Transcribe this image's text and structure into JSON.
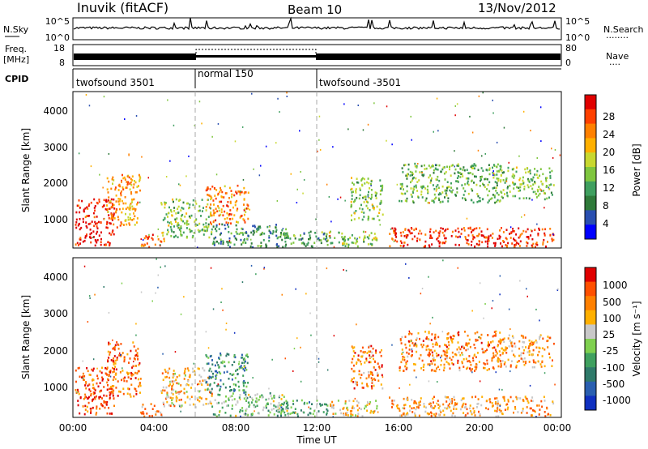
{
  "header": {
    "station": "Inuvik (fitACF)",
    "beam": "Beam 10",
    "date": "13/Nov/2012"
  },
  "noise_panel": {
    "left_label": "N.Sky",
    "left_ticks": [
      "10^5",
      "10^0"
    ],
    "right_ticks": [
      "10^5",
      "10^0"
    ],
    "right_label": "N.Search"
  },
  "freq_panel": {
    "left_label_1": "Freq.",
    "left_label_2": "[MHz]",
    "left_ticks": [
      "18",
      "8"
    ],
    "right_ticks": [
      "80",
      "0"
    ],
    "right_label": "Nave"
  },
  "cpid_panel": {
    "label": "CPID",
    "segments": [
      {
        "name": "twofsound 3501",
        "start_hour": 0,
        "end_hour": 6
      },
      {
        "name": "normal 150",
        "start_hour": 6,
        "end_hour": 12
      },
      {
        "name": "twofsound -3501",
        "start_hour": 12,
        "end_hour": 24
      }
    ]
  },
  "colors": {
    "power_scale": [
      "#0000ff",
      "#2a4fb0",
      "#2f7a3a",
      "#3f9f5f",
      "#7fc63f",
      "#c8d830",
      "#ffb000",
      "#ff8000",
      "#ff4000",
      "#e00000"
    ],
    "velocity_scale": [
      "#e00000",
      "#ff5000",
      "#ff8000",
      "#ffb000",
      "#c8c8c8",
      "#7fd04f",
      "#3fa05f",
      "#2f7a6a",
      "#2a5fb0",
      "#1030c0"
    ]
  },
  "chart_data": [
    {
      "type": "heatmap",
      "title": "Power",
      "xlabel": "Time UT",
      "ylabel": "Slant Range [km]",
      "xlim": [
        0,
        24
      ],
      "ylim": [
        200,
        4600
      ],
      "x_ticks": [
        "00:00",
        "04:00",
        "08:00",
        "12:00",
        "16:00",
        "20:00",
        "00:00"
      ],
      "y_ticks": [
        "1000",
        "2000",
        "3000",
        "4000"
      ],
      "colorbar": {
        "label": "Power [dB]",
        "range": [
          0,
          32
        ],
        "ticks": [
          "4",
          "8",
          "12",
          "16",
          "20",
          "24",
          "28"
        ]
      },
      "regions": [
        {
          "t": [
            0.1,
            2.0
          ],
          "r": [
            300,
            1600
          ],
          "level": 0.95
        },
        {
          "t": [
            1.6,
            3.3
          ],
          "r": [
            800,
            2300
          ],
          "level": 0.7
        },
        {
          "t": [
            3.3,
            4.5
          ],
          "r": [
            250,
            600
          ],
          "level": 0.8
        },
        {
          "t": [
            4.3,
            6.8
          ],
          "r": [
            500,
            1600
          ],
          "level": 0.45
        },
        {
          "t": [
            6.5,
            8.6
          ],
          "r": [
            900,
            2000
          ],
          "level": 0.75
        },
        {
          "t": [
            6.8,
            10.5
          ],
          "r": [
            250,
            900
          ],
          "level": 0.3
        },
        {
          "t": [
            10.0,
            12.5
          ],
          "r": [
            250,
            700
          ],
          "level": 0.35
        },
        {
          "t": [
            12.5,
            15.0
          ],
          "r": [
            250,
            700
          ],
          "level": 0.45
        },
        {
          "t": [
            13.6,
            15.2
          ],
          "r": [
            1000,
            2200
          ],
          "level": 0.45
        },
        {
          "t": [
            15.5,
            23.6
          ],
          "r": [
            250,
            800
          ],
          "level": 0.9
        },
        {
          "t": [
            16.0,
            21.0
          ],
          "r": [
            1500,
            2600
          ],
          "level": 0.4
        },
        {
          "t": [
            21.0,
            23.6
          ],
          "r": [
            1600,
            2500
          ],
          "level": 0.45
        }
      ]
    },
    {
      "type": "heatmap",
      "title": "Velocity",
      "xlabel": "Time UT",
      "ylabel": "Slant Range [km]",
      "xlim": [
        0,
        24
      ],
      "ylim": [
        200,
        4600
      ],
      "x_ticks": [
        "00:00",
        "04:00",
        "08:00",
        "12:00",
        "16:00",
        "20:00",
        "00:00"
      ],
      "y_ticks": [
        "1000",
        "2000",
        "3000",
        "4000"
      ],
      "colorbar": {
        "label": "Velocity [m s⁻¹]",
        "ticks": [
          "1000",
          "500",
          "100",
          "25",
          "-25",
          "-100",
          "-500",
          "-1000"
        ]
      },
      "regions": [
        {
          "t": [
            0.1,
            2.0
          ],
          "r": [
            300,
            1600
          ],
          "level": 0.15
        },
        {
          "t": [
            1.6,
            3.3
          ],
          "r": [
            800,
            2300
          ],
          "level": 0.2
        },
        {
          "t": [
            3.3,
            4.5
          ],
          "r": [
            250,
            600
          ],
          "level": 0.3
        },
        {
          "t": [
            4.3,
            6.8
          ],
          "r": [
            500,
            1600
          ],
          "level": 0.35
        },
        {
          "t": [
            6.5,
            8.6
          ],
          "r": [
            900,
            2000
          ],
          "level": 0.7
        },
        {
          "t": [
            6.8,
            10.5
          ],
          "r": [
            250,
            900
          ],
          "level": 0.55
        },
        {
          "t": [
            10.0,
            12.5
          ],
          "r": [
            250,
            700
          ],
          "level": 0.65
        },
        {
          "t": [
            12.5,
            15.0
          ],
          "r": [
            250,
            700
          ],
          "level": 0.4
        },
        {
          "t": [
            13.6,
            15.2
          ],
          "r": [
            1000,
            2200
          ],
          "level": 0.25
        },
        {
          "t": [
            15.5,
            23.6
          ],
          "r": [
            250,
            800
          ],
          "level": 0.3
        },
        {
          "t": [
            16.0,
            21.0
          ],
          "r": [
            1500,
            2600
          ],
          "level": 0.25
        },
        {
          "t": [
            21.0,
            23.6
          ],
          "r": [
            1600,
            2500
          ],
          "level": 0.3
        }
      ]
    }
  ],
  "legends": {
    "search_dots": "········",
    "nave_dots": "····"
  }
}
